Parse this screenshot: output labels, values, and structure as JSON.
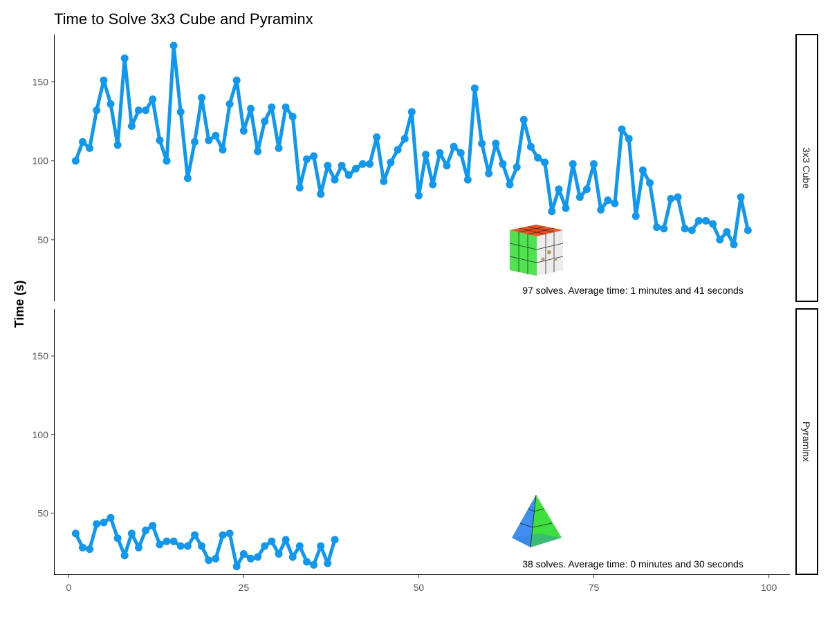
{
  "chart_data": {
    "type": "line",
    "title": "Time to Solve 3x3 Cube and Pyraminx",
    "ylabel": "Time (s)",
    "xlabel": "",
    "xlim": [
      -2,
      103
    ],
    "ylim": [
      11,
      180
    ],
    "x_ticks": [
      0,
      25,
      50,
      75,
      100
    ],
    "y_ticks": [
      50,
      100,
      150
    ],
    "color": "#1097EE",
    "grid": false,
    "panels": [
      {
        "label": "3x3 Cube",
        "annotation": "97 solves. Average time: 1 minutes and 41 seconds",
        "icon": "rubiks-cube-icon",
        "values": [
          100,
          112,
          108,
          132,
          151,
          136,
          110,
          165,
          122,
          132,
          132,
          139,
          113,
          100,
          173,
          131,
          89,
          112,
          140,
          113,
          116,
          107,
          136,
          151,
          119,
          133,
          106,
          125,
          134,
          108,
          134,
          128,
          83,
          101,
          103,
          79,
          97,
          88,
          97,
          91,
          95,
          98,
          98,
          115,
          87,
          99,
          107,
          114,
          131,
          78,
          104,
          85,
          105,
          97,
          109,
          105,
          88,
          146,
          111,
          92,
          111,
          98,
          85,
          96,
          126,
          109,
          102,
          99,
          68,
          82,
          70,
          98,
          77,
          82,
          98,
          69,
          75,
          73,
          120,
          114,
          65,
          94,
          86,
          58,
          57,
          76,
          77,
          57,
          56,
          62,
          62,
          60,
          50,
          55,
          47,
          77,
          56
        ]
      },
      {
        "label": "Pyraminx",
        "annotation": "38 solves. Average time: 0 minutes and 30 seconds",
        "icon": "pyraminx-icon",
        "values": [
          37,
          28,
          27,
          43,
          44,
          47,
          34,
          23,
          37,
          28,
          39,
          42,
          30,
          32,
          32,
          29,
          29,
          36,
          29,
          20,
          21,
          36,
          37,
          16,
          24,
          21,
          22,
          29,
          32,
          24,
          33,
          22,
          29,
          19,
          17,
          29,
          18,
          33
        ]
      }
    ]
  }
}
